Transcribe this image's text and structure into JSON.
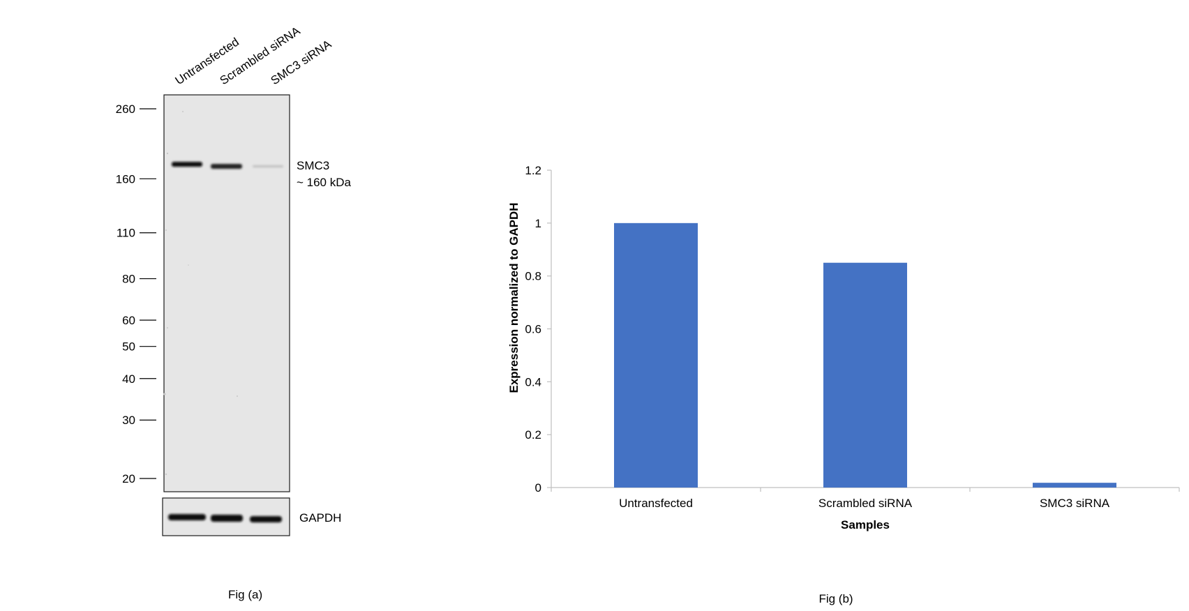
{
  "figure_a": {
    "lane_labels": [
      "Untransfected",
      "Scrambled siRNA",
      "SMC3  siRNA"
    ],
    "markers": [
      "260",
      "160",
      "110",
      "80",
      "60",
      "50",
      "40",
      "30",
      "20"
    ],
    "band_label_line1": "SMC3",
    "band_label_line2": "~ 160 kDa",
    "loading_label": "GAPDH",
    "caption": "Fig (a)",
    "smc3_intensity": [
      1.0,
      0.85,
      0.02
    ]
  },
  "chart_data": {
    "type": "bar",
    "categories": [
      "Untransfected",
      "Scrambled siRNA",
      "SMC3 siRNA"
    ],
    "values": [
      1.0,
      0.85,
      0.018
    ],
    "xlabel": "Samples",
    "ylabel": "Expression  normalized to GAPDH",
    "ylim": [
      0,
      1.2
    ],
    "yticks": [
      "0",
      "0.2",
      "0.4",
      "0.6",
      "0.8",
      "1",
      "1.2"
    ],
    "grid": false,
    "bar_color": "#4472C4"
  },
  "figure_b": {
    "caption": "Fig (b)"
  }
}
